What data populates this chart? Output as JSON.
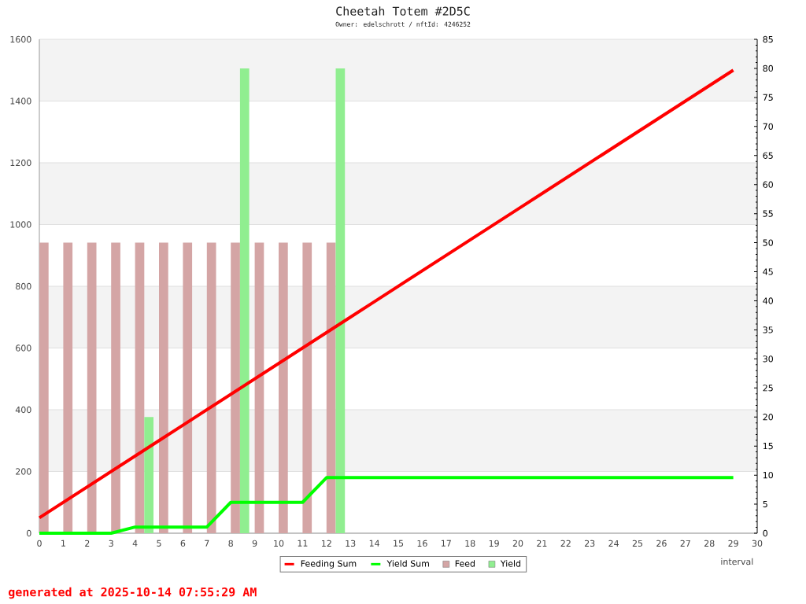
{
  "chart_data": {
    "type": "line",
    "title": "Cheetah Totem #2D5C",
    "subtitle": "Owner: edelschrott / nftId: 4246252",
    "xlabel": "interval",
    "annotations": [
      "generated at 2025-10-14 07:55:29 AM"
    ],
    "xlim": [
      0,
      30
    ],
    "xticks": [
      0,
      1,
      2,
      3,
      4,
      5,
      6,
      7,
      8,
      9,
      10,
      11,
      12,
      13,
      14,
      15,
      16,
      17,
      18,
      19,
      20,
      21,
      22,
      23,
      24,
      25,
      26,
      27,
      28,
      29,
      30
    ],
    "ylim": [
      0,
      1600
    ],
    "yticks": [
      0,
      200,
      400,
      600,
      800,
      1000,
      1200,
      1400,
      1600
    ],
    "y2lim": [
      0,
      85
    ],
    "y2ticks": [
      0,
      5,
      10,
      15,
      20,
      25,
      30,
      35,
      40,
      45,
      50,
      55,
      60,
      65,
      70,
      75,
      80,
      85
    ],
    "grid": "y",
    "legend": "bottom",
    "bands": [
      {
        "axis": "y",
        "from": 200,
        "to": 400,
        "color": "#f3f3f3"
      },
      {
        "axis": "y",
        "from": 600,
        "to": 800,
        "color": "#f3f3f3"
      },
      {
        "axis": "y",
        "from": 1000,
        "to": 1200,
        "color": "#f3f3f3"
      },
      {
        "axis": "y",
        "from": 1400,
        "to": 1600,
        "color": "#f3f3f3"
      }
    ],
    "series": [
      {
        "name": "Feeding Sum",
        "color": "#ff0000",
        "x": [
          0,
          1,
          2,
          3,
          4,
          5,
          6,
          7,
          8,
          9,
          10,
          11,
          12,
          13,
          14,
          15,
          16,
          17,
          18,
          19,
          20,
          21,
          22,
          23,
          24,
          25,
          26,
          27,
          28,
          29
        ],
        "values": [
          50,
          100,
          150,
          200,
          250,
          300,
          350,
          400,
          450,
          500,
          550,
          600,
          650,
          700,
          750,
          800,
          850,
          900,
          950,
          1000,
          1050,
          1100,
          1150,
          1200,
          1250,
          1300,
          1350,
          1400,
          1450,
          1500
        ]
      },
      {
        "name": "Yield Sum",
        "color": "#00ff00",
        "x": [
          0,
          1,
          2,
          3,
          4,
          5,
          6,
          7,
          8,
          9,
          10,
          11,
          12,
          13,
          14,
          15,
          16,
          17,
          18,
          19,
          20,
          21,
          22,
          23,
          24,
          25,
          26,
          27,
          28,
          29
        ],
        "values": [
          0,
          0,
          0,
          0,
          20,
          20,
          20,
          20,
          100,
          100,
          100,
          100,
          180,
          180,
          180,
          180,
          180,
          180,
          180,
          180,
          180,
          180,
          180,
          180,
          180,
          180,
          180,
          180,
          180,
          180
        ]
      },
      {
        "name": "Feed",
        "type": "bar",
        "axis": "y2",
        "color": "#d4a5a5",
        "x": [
          0,
          1,
          2,
          3,
          4,
          5,
          6,
          7,
          8,
          9,
          10,
          11,
          12
        ],
        "values": [
          50,
          50,
          50,
          50,
          50,
          50,
          50,
          50,
          50,
          50,
          50,
          50,
          50
        ]
      },
      {
        "name": "Yield",
        "type": "bar",
        "axis": "y2",
        "color": "#90ee90",
        "x": [
          4,
          8,
          12
        ],
        "values": [
          20,
          80,
          80
        ]
      }
    ]
  }
}
